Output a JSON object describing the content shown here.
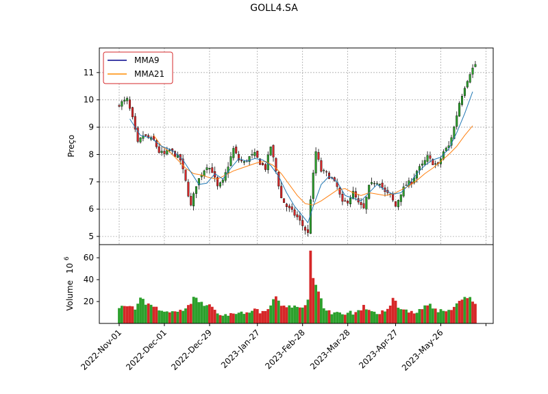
{
  "chart_data": {
    "type": "candlestick",
    "title": "GOLL4.SA",
    "ylabel_price": "Preço",
    "ylabel_volume": "Volume",
    "volume_exponent_base": "10",
    "volume_exponent": "6",
    "date_ticks": [
      "2022-Nov-01",
      "2022-Dec-01",
      "2022-Dec-29",
      "2023-Jan-27",
      "2023-Feb-28",
      "2023-Mar-28",
      "2023-Apr-27",
      "2023-May-26"
    ],
    "price_yticks": [
      5,
      6,
      7,
      8,
      9,
      10,
      11
    ],
    "price_ylim": [
      4.7,
      11.9
    ],
    "volume_yticks": [
      20,
      40,
      60
    ],
    "volume_ylim": [
      0,
      72
    ],
    "legend_position": "upper-left",
    "legend": [
      {
        "name": "MMA9",
        "color": "#00008b"
      },
      {
        "name": "MMA21",
        "color": "#ff8c00"
      }
    ],
    "series_colors": {
      "up": "#2ca02c",
      "down": "#d62728",
      "ma9_line": "#1f77b4",
      "ma21_line": "#ff7f0e",
      "wick": "#000000"
    },
    "grid": true,
    "close_path": [
      [
        0,
        9.85
      ],
      [
        3,
        10.0
      ],
      [
        5,
        9.3
      ],
      [
        7,
        8.4
      ],
      [
        9,
        8.7
      ],
      [
        11,
        8.6
      ],
      [
        13,
        8.5
      ],
      [
        15,
        8.1
      ],
      [
        17,
        8.0
      ],
      [
        19,
        8.15
      ],
      [
        21,
        8.0
      ],
      [
        23,
        7.8
      ],
      [
        25,
        7.0
      ],
      [
        27,
        6.1
      ],
      [
        29,
        6.9
      ],
      [
        31,
        7.3
      ],
      [
        33,
        7.6
      ],
      [
        35,
        7.4
      ],
      [
        37,
        6.8
      ],
      [
        39,
        7.0
      ],
      [
        41,
        7.6
      ],
      [
        43,
        8.2
      ],
      [
        45,
        7.8
      ],
      [
        47,
        7.7
      ],
      [
        49,
        7.9
      ],
      [
        51,
        8.0
      ],
      [
        53,
        7.7
      ],
      [
        55,
        7.5
      ],
      [
        57,
        8.3
      ],
      [
        59,
        7.4
      ],
      [
        61,
        6.4
      ],
      [
        63,
        6.1
      ],
      [
        65,
        5.9
      ],
      [
        67,
        5.7
      ],
      [
        69,
        5.4
      ],
      [
        71,
        5.1
      ],
      [
        72,
        6.4
      ],
      [
        74,
        8.1
      ],
      [
        76,
        7.4
      ],
      [
        78,
        7.3
      ],
      [
        80,
        7.1
      ],
      [
        82,
        6.8
      ],
      [
        84,
        6.2
      ],
      [
        86,
        6.3
      ],
      [
        88,
        6.6
      ],
      [
        90,
        6.2
      ],
      [
        92,
        6.0
      ],
      [
        94,
        6.8
      ],
      [
        96,
        7.0
      ],
      [
        98,
        7.0
      ],
      [
        100,
        6.6
      ],
      [
        102,
        6.5
      ],
      [
        104,
        6.1
      ],
      [
        106,
        6.6
      ],
      [
        108,
        6.9
      ],
      [
        110,
        7.0
      ],
      [
        112,
        7.4
      ],
      [
        114,
        7.6
      ],
      [
        116,
        7.9
      ],
      [
        118,
        7.7
      ],
      [
        120,
        7.6
      ],
      [
        122,
        8.1
      ],
      [
        124,
        8.3
      ],
      [
        126,
        9.0
      ],
      [
        128,
        9.9
      ],
      [
        130,
        10.5
      ],
      [
        132,
        11.0
      ],
      [
        134,
        11.3
      ]
    ],
    "ma9_path": [
      [
        4,
        9.3
      ],
      [
        8,
        8.7
      ],
      [
        12,
        8.6
      ],
      [
        16,
        8.3
      ],
      [
        20,
        8.15
      ],
      [
        24,
        7.8
      ],
      [
        28,
        7.2
      ],
      [
        30,
        6.9
      ],
      [
        33,
        6.95
      ],
      [
        36,
        7.3
      ],
      [
        39,
        7.1
      ],
      [
        42,
        7.5
      ],
      [
        45,
        7.85
      ],
      [
        48,
        7.75
      ],
      [
        51,
        7.85
      ],
      [
        54,
        7.8
      ],
      [
        57,
        7.6
      ],
      [
        60,
        7.2
      ],
      [
        63,
        6.6
      ],
      [
        66,
        6.1
      ],
      [
        69,
        5.75
      ],
      [
        71,
        5.5
      ],
      [
        73,
        6.1
      ],
      [
        76,
        6.9
      ],
      [
        79,
        7.2
      ],
      [
        82,
        7.0
      ],
      [
        85,
        6.5
      ],
      [
        88,
        6.4
      ],
      [
        91,
        6.3
      ],
      [
        94,
        6.6
      ],
      [
        97,
        6.9
      ],
      [
        100,
        6.7
      ],
      [
        103,
        6.55
      ],
      [
        106,
        6.6
      ],
      [
        109,
        6.9
      ],
      [
        112,
        7.3
      ],
      [
        115,
        7.6
      ],
      [
        118,
        7.8
      ],
      [
        121,
        7.9
      ],
      [
        124,
        8.2
      ],
      [
        127,
        8.8
      ],
      [
        130,
        9.5
      ],
      [
        133,
        10.3
      ]
    ],
    "ma21_path": [
      [
        13,
        8.7
      ],
      [
        16,
        8.3
      ],
      [
        19,
        8.1
      ],
      [
        22,
        7.8
      ],
      [
        25,
        7.5
      ],
      [
        28,
        7.3
      ],
      [
        31,
        7.25
      ],
      [
        34,
        7.15
      ],
      [
        37,
        7.1
      ],
      [
        40,
        7.25
      ],
      [
        43,
        7.4
      ],
      [
        46,
        7.5
      ],
      [
        49,
        7.6
      ],
      [
        52,
        7.7
      ],
      [
        55,
        7.75
      ],
      [
        58,
        7.6
      ],
      [
        61,
        7.3
      ],
      [
        64,
        6.9
      ],
      [
        67,
        6.5
      ],
      [
        70,
        6.2
      ],
      [
        73,
        6.15
      ],
      [
        76,
        6.3
      ],
      [
        79,
        6.5
      ],
      [
        82,
        6.7
      ],
      [
        85,
        6.75
      ],
      [
        88,
        6.6
      ],
      [
        91,
        6.5
      ],
      [
        94,
        6.6
      ],
      [
        97,
        6.55
      ],
      [
        100,
        6.5
      ],
      [
        103,
        6.55
      ],
      [
        106,
        6.7
      ],
      [
        109,
        6.85
      ],
      [
        112,
        7.05
      ],
      [
        115,
        7.3
      ],
      [
        118,
        7.5
      ],
      [
        121,
        7.75
      ],
      [
        124,
        8.0
      ],
      [
        127,
        8.3
      ],
      [
        130,
        8.7
      ],
      [
        133,
        9.05
      ]
    ],
    "volume_path": [
      [
        0,
        16
      ],
      [
        3,
        15
      ],
      [
        6,
        13
      ],
      [
        8,
        23
      ],
      [
        10,
        18
      ],
      [
        13,
        14
      ],
      [
        16,
        12
      ],
      [
        19,
        10
      ],
      [
        22,
        11
      ],
      [
        25,
        12
      ],
      [
        28,
        23
      ],
      [
        30,
        20
      ],
      [
        32,
        18
      ],
      [
        35,
        15
      ],
      [
        38,
        9
      ],
      [
        41,
        8
      ],
      [
        44,
        8
      ],
      [
        47,
        10
      ],
      [
        50,
        12
      ],
      [
        53,
        11
      ],
      [
        56,
        14
      ],
      [
        59,
        24
      ],
      [
        61,
        18
      ],
      [
        63,
        16
      ],
      [
        66,
        16
      ],
      [
        69,
        14
      ],
      [
        71,
        21
      ],
      [
        72,
        67
      ],
      [
        73,
        41
      ],
      [
        74,
        36
      ],
      [
        75,
        31
      ],
      [
        77,
        13
      ],
      [
        80,
        10
      ],
      [
        83,
        9
      ],
      [
        86,
        10
      ],
      [
        89,
        9
      ],
      [
        92,
        15
      ],
      [
        95,
        10
      ],
      [
        98,
        9
      ],
      [
        101,
        12
      ],
      [
        103,
        24
      ],
      [
        105,
        16
      ],
      [
        108,
        11
      ],
      [
        111,
        10
      ],
      [
        114,
        15
      ],
      [
        117,
        16
      ],
      [
        120,
        11
      ],
      [
        123,
        13
      ],
      [
        126,
        14
      ],
      [
        128,
        21
      ],
      [
        130,
        25
      ],
      [
        132,
        25
      ],
      [
        134,
        16
      ]
    ]
  }
}
